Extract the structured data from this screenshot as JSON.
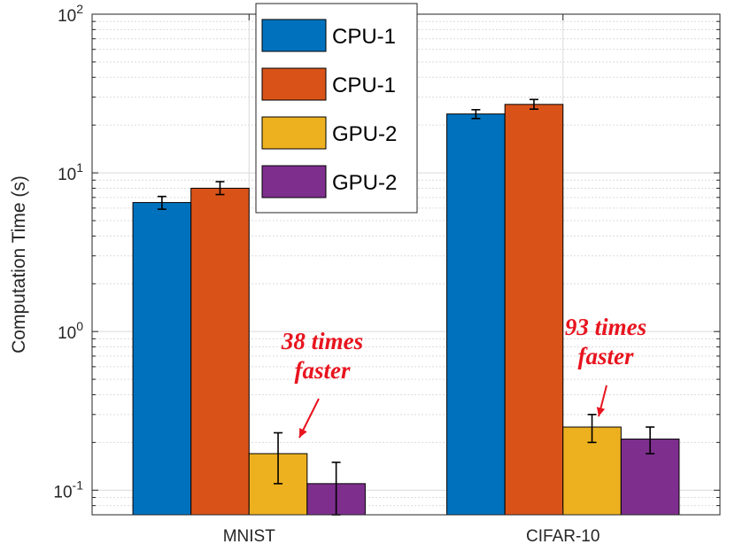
{
  "chart_data": {
    "type": "bar",
    "yscale": "log",
    "ylabel": "Computation Time (s)",
    "ylim": [
      0.07,
      100
    ],
    "categories": [
      "MNIST",
      "CIFAR-10"
    ],
    "y_tick_labels": [
      {
        "value": 0.1,
        "base": "10",
        "exp": "-1"
      },
      {
        "value": 1,
        "base": "10",
        "exp": "0"
      },
      {
        "value": 10,
        "base": "10",
        "exp": "1"
      },
      {
        "value": 100,
        "base": "10",
        "exp": "2"
      }
    ],
    "series": [
      {
        "name": "CPU-1",
        "color": "#0072BD",
        "values": [
          6.5,
          23.5
        ],
        "error": [
          [
            5.9,
            7.1
          ],
          [
            22.0,
            25.0
          ]
        ]
      },
      {
        "name": "CPU-1",
        "color": "#D95319",
        "values": [
          8.0,
          27.0
        ],
        "error": [
          [
            7.3,
            8.8
          ],
          [
            25.2,
            29.0
          ]
        ]
      },
      {
        "name": "GPU-2",
        "color": "#EDB120",
        "values": [
          0.17,
          0.25
        ],
        "error": [
          [
            0.11,
            0.23
          ],
          [
            0.2,
            0.3
          ]
        ]
      },
      {
        "name": "GPU-2",
        "color": "#7E2F8E",
        "values": [
          0.11,
          0.21
        ],
        "error": [
          [
            0.07,
            0.15
          ],
          [
            0.17,
            0.25
          ]
        ]
      }
    ],
    "legend_position": "top-center",
    "grid": true,
    "annotations": [
      {
        "category": "MNIST",
        "lines": [
          "38 times",
          "faster"
        ],
        "color": "#e8141e"
      },
      {
        "category": "CIFAR-10",
        "lines": [
          "93 times",
          "faster"
        ],
        "color": "#e8141e"
      }
    ]
  }
}
